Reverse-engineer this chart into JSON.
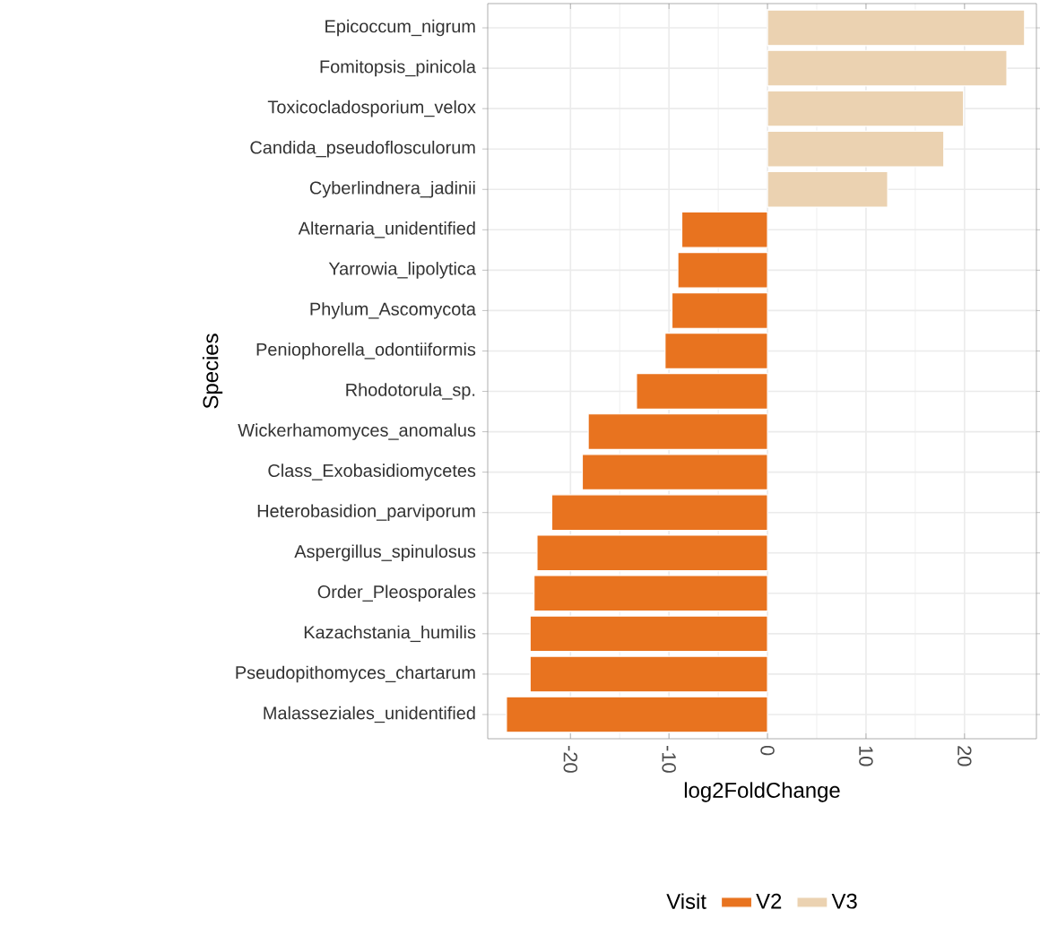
{
  "chart_data": {
    "type": "bar",
    "orientation": "horizontal",
    "xlabel": "log2FoldChange",
    "ylabel": "Species",
    "legend_title": "Visit",
    "legend": "bottom",
    "grid": true,
    "categories": [
      "Epicoccum_nigrum",
      "Fomitopsis_pinicola",
      "Toxicocladosporium_velox",
      "Candida_pseudoflosculorum",
      "Cyberlindnera_jadinii",
      "Alternaria_unidentified",
      "Yarrowia_lipolytica",
      "Phylum_Ascomycota",
      "Peniophorella_odontiiformis",
      "Rhodotorula_sp.",
      "Wickerhamomyces_anomalus",
      "Class_Exobasidiomycetes",
      "Heterobasidion_parviporum",
      "Aspergillus_spinulosus",
      "Order_Pleosporales",
      "Kazachstania_humilis",
      "Pseudopithomyces_chartarum",
      "Malasseziales_unidentified"
    ],
    "series": [
      {
        "name": "V2",
        "color": "#e8731f",
        "values": [
          null,
          null,
          null,
          null,
          null,
          -8.7,
          -9.1,
          -9.7,
          -10.4,
          -13.3,
          -18.2,
          -18.8,
          -21.9,
          -23.4,
          -23.7,
          -24.1,
          -24.1,
          -26.5
        ]
      },
      {
        "name": "V3",
        "color": "#ebd2b1",
        "values": [
          26.1,
          24.3,
          19.9,
          17.9,
          12.2,
          null,
          null,
          null,
          null,
          null,
          null,
          null,
          null,
          null,
          null,
          null,
          null,
          null
        ]
      }
    ],
    "xlim": [
      -28.4,
      27.3
    ],
    "xticks": [
      -20,
      -10,
      0,
      10,
      20
    ]
  }
}
